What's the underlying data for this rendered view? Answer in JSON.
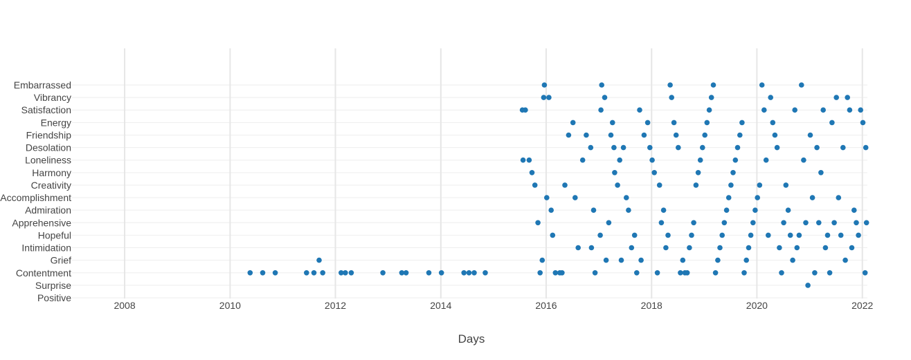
{
  "chart_data": {
    "type": "scatter",
    "title": "",
    "xlabel": "Days",
    "ylabel": "",
    "xlim": [
      "2007-01-01",
      "2022-02-05"
    ],
    "x_ticks": [
      "2008",
      "2010",
      "2012",
      "2014",
      "2016",
      "2018",
      "2020",
      "2022"
    ],
    "categories": [
      "Positive",
      "Surprise",
      "Contentment",
      "Grief",
      "Intimidation",
      "Hopeful",
      "Apprehensive",
      "Admiration",
      "Accomplishment",
      "Creativity",
      "Harmony",
      "Loneliness",
      "Desolation",
      "Friendship",
      "Energy",
      "Satisfaction",
      "Vibrancy",
      "Embarrassed"
    ],
    "grid": true,
    "legend": false,
    "marker_color": "#1f77b4",
    "series": [
      {
        "points": [
          [
            "2010-05-20",
            "Contentment"
          ],
          [
            "2010-08-15",
            "Contentment"
          ],
          [
            "2010-11-10",
            "Contentment"
          ],
          [
            "2011-06-15",
            "Contentment"
          ],
          [
            "2011-08-05",
            "Contentment"
          ],
          [
            "2011-09-10",
            "Grief"
          ],
          [
            "2011-10-05",
            "Contentment"
          ],
          [
            "2012-02-10",
            "Contentment"
          ],
          [
            "2012-03-10",
            "Contentment"
          ],
          [
            "2012-04-20",
            "Contentment"
          ],
          [
            "2012-11-25",
            "Contentment"
          ],
          [
            "2013-04-05",
            "Contentment"
          ],
          [
            "2013-05-05",
            "Contentment"
          ],
          [
            "2013-10-10",
            "Contentment"
          ],
          [
            "2014-01-05",
            "Contentment"
          ],
          [
            "2014-06-10",
            "Contentment"
          ],
          [
            "2014-07-15",
            "Contentment"
          ],
          [
            "2014-08-20",
            "Contentment"
          ],
          [
            "2014-11-05",
            "Contentment"
          ],
          [
            "2015-07-20",
            "Satisfaction"
          ],
          [
            "2015-08-10",
            "Satisfaction"
          ],
          [
            "2015-07-25",
            "Loneliness"
          ],
          [
            "2015-09-05",
            "Loneliness"
          ],
          [
            "2015-09-25",
            "Harmony"
          ],
          [
            "2015-10-15",
            "Creativity"
          ],
          [
            "2015-11-05",
            "Apprehensive"
          ],
          [
            "2015-11-20",
            "Contentment"
          ],
          [
            "2015-12-05",
            "Grief"
          ],
          [
            "2015-12-20",
            "Embarrassed"
          ],
          [
            "2015-12-15",
            "Vibrancy"
          ],
          [
            "2016-01-05",
            "Accomplishment"
          ],
          [
            "2016-01-20",
            "Vibrancy"
          ],
          [
            "2016-02-05",
            "Admiration"
          ],
          [
            "2016-02-15",
            "Hopeful"
          ],
          [
            "2016-03-05",
            "Contentment"
          ],
          [
            "2016-04-05",
            "Contentment"
          ],
          [
            "2016-04-20",
            "Contentment"
          ],
          [
            "2016-05-10",
            "Creativity"
          ],
          [
            "2016-06-05",
            "Friendship"
          ],
          [
            "2016-07-05",
            "Energy"
          ],
          [
            "2016-07-20",
            "Accomplishment"
          ],
          [
            "2016-08-10",
            "Intimidation"
          ],
          [
            "2016-09-10",
            "Loneliness"
          ],
          [
            "2016-10-05",
            "Friendship"
          ],
          [
            "2016-11-05",
            "Desolation"
          ],
          [
            "2016-11-10",
            "Intimidation"
          ],
          [
            "2016-11-25",
            "Admiration"
          ],
          [
            "2016-12-05",
            "Contentment"
          ],
          [
            "2017-01-10",
            "Hopeful"
          ],
          [
            "2017-01-15",
            "Satisfaction"
          ],
          [
            "2017-01-20",
            "Embarrassed"
          ],
          [
            "2017-02-10",
            "Vibrancy"
          ],
          [
            "2017-02-20",
            "Grief"
          ],
          [
            "2017-03-10",
            "Apprehensive"
          ],
          [
            "2017-03-25",
            "Friendship"
          ],
          [
            "2017-04-05",
            "Energy"
          ],
          [
            "2017-04-15",
            "Desolation"
          ],
          [
            "2017-04-20",
            "Harmony"
          ],
          [
            "2017-05-10",
            "Creativity"
          ],
          [
            "2017-05-25",
            "Loneliness"
          ],
          [
            "2017-06-05",
            "Grief"
          ],
          [
            "2017-06-20",
            "Desolation"
          ],
          [
            "2017-07-10",
            "Accomplishment"
          ],
          [
            "2017-07-25",
            "Admiration"
          ],
          [
            "2017-08-15",
            "Intimidation"
          ],
          [
            "2017-09-05",
            "Hopeful"
          ],
          [
            "2017-09-20",
            "Contentment"
          ],
          [
            "2017-10-10",
            "Satisfaction"
          ],
          [
            "2017-10-20",
            "Grief"
          ],
          [
            "2017-11-10",
            "Friendship"
          ],
          [
            "2017-12-05",
            "Energy"
          ],
          [
            "2017-12-20",
            "Desolation"
          ],
          [
            "2018-01-05",
            "Loneliness"
          ],
          [
            "2018-01-20",
            "Harmony"
          ],
          [
            "2018-02-10",
            "Contentment"
          ],
          [
            "2018-02-25",
            "Creativity"
          ],
          [
            "2018-03-10",
            "Apprehensive"
          ],
          [
            "2018-03-25",
            "Admiration"
          ],
          [
            "2018-04-10",
            "Intimidation"
          ],
          [
            "2018-04-25",
            "Hopeful"
          ],
          [
            "2018-05-10",
            "Embarrassed"
          ],
          [
            "2018-05-20",
            "Vibrancy"
          ],
          [
            "2018-06-05",
            "Energy"
          ],
          [
            "2018-06-20",
            "Friendship"
          ],
          [
            "2018-07-05",
            "Desolation"
          ],
          [
            "2018-07-20",
            "Contentment"
          ],
          [
            "2018-08-05",
            "Grief"
          ],
          [
            "2018-08-20",
            "Contentment"
          ],
          [
            "2018-09-05",
            "Contentment"
          ],
          [
            "2018-09-20",
            "Intimidation"
          ],
          [
            "2018-10-05",
            "Hopeful"
          ],
          [
            "2018-10-20",
            "Apprehensive"
          ],
          [
            "2018-11-05",
            "Creativity"
          ],
          [
            "2018-11-20",
            "Harmony"
          ],
          [
            "2018-12-05",
            "Loneliness"
          ],
          [
            "2018-12-20",
            "Desolation"
          ],
          [
            "2019-01-05",
            "Friendship"
          ],
          [
            "2019-01-20",
            "Energy"
          ],
          [
            "2019-02-05",
            "Satisfaction"
          ],
          [
            "2019-02-20",
            "Vibrancy"
          ],
          [
            "2019-03-05",
            "Embarrassed"
          ],
          [
            "2019-03-20",
            "Contentment"
          ],
          [
            "2019-04-05",
            "Grief"
          ],
          [
            "2019-04-20",
            "Intimidation"
          ],
          [
            "2019-05-05",
            "Hopeful"
          ],
          [
            "2019-05-20",
            "Apprehensive"
          ],
          [
            "2019-06-05",
            "Admiration"
          ],
          [
            "2019-06-20",
            "Accomplishment"
          ],
          [
            "2019-07-05",
            "Creativity"
          ],
          [
            "2019-07-20",
            "Harmony"
          ],
          [
            "2019-08-05",
            "Loneliness"
          ],
          [
            "2019-08-20",
            "Desolation"
          ],
          [
            "2019-09-05",
            "Friendship"
          ],
          [
            "2019-09-20",
            "Energy"
          ],
          [
            "2019-10-05",
            "Contentment"
          ],
          [
            "2019-10-20",
            "Grief"
          ],
          [
            "2019-11-05",
            "Intimidation"
          ],
          [
            "2019-11-20",
            "Hopeful"
          ],
          [
            "2019-12-05",
            "Apprehensive"
          ],
          [
            "2019-12-20",
            "Admiration"
          ],
          [
            "2020-01-05",
            "Accomplishment"
          ],
          [
            "2020-01-20",
            "Creativity"
          ],
          [
            "2020-02-05",
            "Embarrassed"
          ],
          [
            "2020-02-20",
            "Satisfaction"
          ],
          [
            "2020-03-05",
            "Loneliness"
          ],
          [
            "2020-03-20",
            "Hopeful"
          ],
          [
            "2020-04-05",
            "Vibrancy"
          ],
          [
            "2020-04-20",
            "Energy"
          ],
          [
            "2020-05-05",
            "Friendship"
          ],
          [
            "2020-05-20",
            "Desolation"
          ],
          [
            "2020-06-05",
            "Intimidation"
          ],
          [
            "2020-06-20",
            "Contentment"
          ],
          [
            "2020-07-05",
            "Apprehensive"
          ],
          [
            "2020-07-20",
            "Creativity"
          ],
          [
            "2020-08-05",
            "Admiration"
          ],
          [
            "2020-08-20",
            "Hopeful"
          ],
          [
            "2020-09-05",
            "Grief"
          ],
          [
            "2020-09-20",
            "Satisfaction"
          ],
          [
            "2020-10-05",
            "Intimidation"
          ],
          [
            "2020-10-20",
            "Hopeful"
          ],
          [
            "2020-11-05",
            "Embarrassed"
          ],
          [
            "2020-11-20",
            "Loneliness"
          ],
          [
            "2020-12-05",
            "Apprehensive"
          ],
          [
            "2020-12-20",
            "Surprise"
          ],
          [
            "2021-01-05",
            "Friendship"
          ],
          [
            "2021-01-20",
            "Accomplishment"
          ],
          [
            "2021-02-05",
            "Contentment"
          ],
          [
            "2021-02-20",
            "Desolation"
          ],
          [
            "2021-03-05",
            "Apprehensive"
          ],
          [
            "2021-03-20",
            "Harmony"
          ],
          [
            "2021-04-05",
            "Satisfaction"
          ],
          [
            "2021-04-20",
            "Intimidation"
          ],
          [
            "2021-05-05",
            "Hopeful"
          ],
          [
            "2021-05-20",
            "Contentment"
          ],
          [
            "2021-06-05",
            "Energy"
          ],
          [
            "2021-06-20",
            "Apprehensive"
          ],
          [
            "2021-07-05",
            "Vibrancy"
          ],
          [
            "2021-07-20",
            "Accomplishment"
          ],
          [
            "2021-08-05",
            "Hopeful"
          ],
          [
            "2021-08-20",
            "Desolation"
          ],
          [
            "2021-09-05",
            "Grief"
          ],
          [
            "2021-09-20",
            "Vibrancy"
          ],
          [
            "2021-10-05",
            "Satisfaction"
          ],
          [
            "2021-10-20",
            "Intimidation"
          ],
          [
            "2021-11-05",
            "Admiration"
          ],
          [
            "2021-11-20",
            "Apprehensive"
          ],
          [
            "2021-12-05",
            "Hopeful"
          ],
          [
            "2021-12-20",
            "Satisfaction"
          ],
          [
            "2022-01-05",
            "Energy"
          ],
          [
            "2022-01-20",
            "Contentment"
          ],
          [
            "2022-01-25",
            "Desolation"
          ],
          [
            "2022-01-30",
            "Apprehensive"
          ]
        ]
      }
    ]
  }
}
